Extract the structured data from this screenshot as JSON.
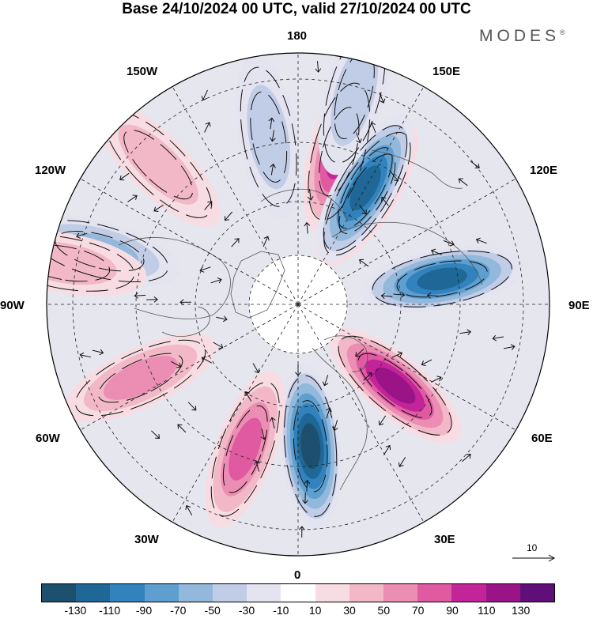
{
  "header": {
    "title": "Base 24/10/2024 00 UTC, valid 27/10/2024 00 UTC",
    "brand": "MODES",
    "brand_mark": "®"
  },
  "map": {
    "projection": "north-polar-stereographic",
    "longitude_labels": [
      "180",
      "150E",
      "120E",
      "90E",
      "60E",
      "30E",
      "0",
      "30W",
      "60W",
      "90W",
      "120W",
      "150W"
    ],
    "anomaly_centers": [
      {
        "lon": 148,
        "value": 120
      },
      {
        "lon": 165,
        "value": 100
      },
      {
        "lon": 150,
        "value": -120
      },
      {
        "lon": 100,
        "value": -110
      },
      {
        "lon": 50,
        "value": 110
      },
      {
        "lon": 5,
        "value": -130
      },
      {
        "lon": -20,
        "value": 80
      },
      {
        "lon": -65,
        "value": 60
      },
      {
        "lon": -105,
        "value": -60
      },
      {
        "lon": -135,
        "value": 40
      },
      {
        "lon": -170,
        "value": -40
      },
      {
        "lon": 165,
        "value": -40
      },
      {
        "lon": -100,
        "value": 30
      }
    ]
  },
  "vector_reference": {
    "label": "10"
  },
  "colorbar": {
    "colors": [
      "#1d4f6f",
      "#1f6796",
      "#3182bd",
      "#5e9fd0",
      "#92b8dc",
      "#c1cde6",
      "#e4e4f1",
      "#ffffff",
      "#f7dde3",
      "#f2b8c8",
      "#ec8db3",
      "#e05aa2",
      "#c4249a",
      "#9a1488",
      "#600f79"
    ],
    "tick_labels": [
      "-130",
      "-110",
      "-90",
      "-70",
      "-50",
      "-30",
      "-10",
      "10",
      "30",
      "50",
      "70",
      "90",
      "110",
      "130"
    ],
    "values": [
      -130,
      -110,
      -90,
      -70,
      -50,
      -30,
      -10,
      10,
      30,
      50,
      70,
      90,
      110,
      130
    ]
  }
}
